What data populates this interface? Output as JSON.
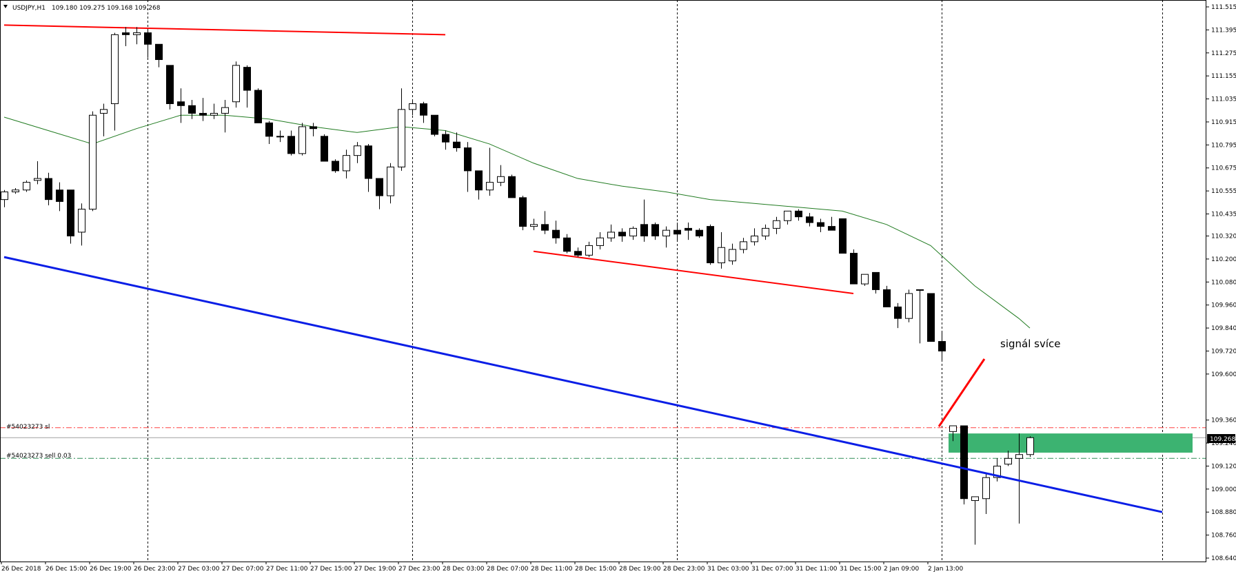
{
  "header": {
    "symbol_label": "USDJPY,H1",
    "ohlc_text": "109.180 109.275 109.168 109.268"
  },
  "orders": {
    "sl_label": "#54023273 sl",
    "sell_label": "#54023273 sell 0.03"
  },
  "annotation": {
    "text": "signál svíce"
  },
  "price_tag": {
    "text": "109.268"
  },
  "colors": {
    "bull_fill": "#ffffff",
    "bear_fill": "#000000",
    "ma": "#1f7a1f",
    "resistance": "#ff0000",
    "trendline": "#0a1ee6",
    "zone": "#3cb371",
    "order_line": "#2e8b57",
    "sl_line": "#ff4040"
  },
  "chart_data": {
    "type": "candlestick",
    "symbol": "USDJPY",
    "timeframe": "H1",
    "ylim": [
      108.64,
      111.515
    ],
    "y_ticks": [
      "111.515",
      "111.395",
      "111.275",
      "111.155",
      "111.035",
      "110.915",
      "110.795",
      "110.675",
      "110.555",
      "110.435",
      "110.320",
      "110.200",
      "110.080",
      "109.960",
      "109.840",
      "109.720",
      "109.600",
      "109.360",
      "109.240",
      "109.120",
      "109.000",
      "108.880",
      "108.760",
      "108.640"
    ],
    "x_ticks": [
      "26 Dec 2018",
      "26 Dec 15:00",
      "26 Dec 19:00",
      "26 Dec 23:00",
      "27 Dec 03:00",
      "27 Dec 07:00",
      "27 Dec 11:00",
      "27 Dec 15:00",
      "27 Dec 19:00",
      "27 Dec 23:00",
      "28 Dec 03:00",
      "28 Dec 07:00",
      "28 Dec 11:00",
      "28 Dec 15:00",
      "28 Dec 19:00",
      "28 Dec 23:00",
      "31 Dec 03:00",
      "31 Dec 07:00",
      "31 Dec 11:00",
      "31 Dec 15:00",
      "2 Jan 09:00",
      "2 Jan 13:00"
    ],
    "ohlc": [
      [
        110.51,
        110.56,
        110.47,
        110.55
      ],
      [
        110.55,
        110.57,
        110.54,
        110.56
      ],
      [
        110.56,
        110.61,
        110.55,
        110.6
      ],
      [
        110.61,
        110.71,
        110.59,
        110.62
      ],
      [
        110.62,
        110.65,
        110.48,
        110.51
      ],
      [
        110.56,
        110.6,
        110.45,
        110.5
      ],
      [
        110.56,
        110.56,
        110.28,
        110.32
      ],
      [
        110.34,
        110.49,
        110.27,
        110.46
      ],
      [
        110.46,
        110.97,
        110.45,
        110.95
      ],
      [
        110.96,
        111.01,
        110.84,
        110.98
      ],
      [
        111.01,
        111.38,
        110.87,
        111.37
      ],
      [
        111.38,
        111.41,
        111.31,
        111.37
      ],
      [
        111.37,
        111.41,
        111.32,
        111.38
      ],
      [
        111.38,
        111.39,
        111.25,
        111.32
      ],
      [
        111.32,
        111.32,
        111.2,
        111.24
      ],
      [
        111.21,
        111.21,
        110.98,
        111.01
      ],
      [
        111.02,
        111.09,
        110.91,
        111.0
      ],
      [
        111.0,
        111.03,
        110.93,
        110.96
      ],
      [
        110.96,
        111.04,
        110.92,
        110.95
      ],
      [
        110.95,
        111.01,
        110.93,
        110.96
      ],
      [
        110.96,
        111.03,
        110.86,
        110.99
      ],
      [
        111.02,
        111.23,
        110.99,
        111.21
      ],
      [
        111.2,
        111.21,
        110.99,
        111.08
      ],
      [
        111.08,
        111.09,
        110.92,
        110.91
      ],
      [
        110.91,
        110.92,
        110.8,
        110.84
      ],
      [
        110.84,
        110.87,
        110.81,
        110.84
      ],
      [
        110.84,
        110.87,
        110.74,
        110.75
      ],
      [
        110.75,
        110.91,
        110.74,
        110.89
      ],
      [
        110.89,
        110.91,
        110.84,
        110.88
      ],
      [
        110.84,
        110.85,
        110.71,
        110.71
      ],
      [
        110.71,
        110.72,
        110.65,
        110.66
      ],
      [
        110.66,
        110.77,
        110.62,
        110.74
      ],
      [
        110.74,
        110.81,
        110.7,
        110.79
      ],
      [
        110.79,
        110.8,
        110.55,
        110.62
      ],
      [
        110.62,
        110.62,
        110.46,
        110.53
      ],
      [
        110.53,
        110.7,
        110.49,
        110.68
      ],
      [
        110.68,
        111.09,
        110.66,
        110.98
      ],
      [
        110.98,
        111.03,
        110.95,
        111.01
      ],
      [
        111.01,
        111.02,
        110.91,
        110.95
      ],
      [
        110.95,
        110.95,
        110.84,
        110.85
      ],
      [
        110.85,
        110.87,
        110.77,
        110.81
      ],
      [
        110.81,
        110.86,
        110.76,
        110.78
      ],
      [
        110.78,
        110.81,
        110.55,
        110.66
      ],
      [
        110.66,
        110.66,
        110.51,
        110.56
      ],
      [
        110.56,
        110.78,
        110.53,
        110.6
      ],
      [
        110.6,
        110.69,
        110.58,
        110.63
      ],
      [
        110.63,
        110.64,
        110.52,
        110.52
      ],
      [
        110.52,
        110.53,
        110.35,
        110.37
      ],
      [
        110.37,
        110.41,
        110.35,
        110.38
      ],
      [
        110.38,
        110.45,
        110.33,
        110.35
      ],
      [
        110.35,
        110.4,
        110.28,
        110.31
      ],
      [
        110.31,
        110.33,
        110.23,
        110.24
      ],
      [
        110.24,
        110.26,
        110.21,
        110.22
      ],
      [
        110.22,
        110.29,
        110.21,
        110.27
      ],
      [
        110.27,
        110.34,
        110.25,
        110.31
      ],
      [
        110.31,
        110.38,
        110.29,
        110.34
      ],
      [
        110.34,
        110.36,
        110.29,
        110.32
      ],
      [
        110.32,
        110.37,
        110.3,
        110.36
      ],
      [
        110.38,
        110.51,
        110.29,
        110.32
      ],
      [
        110.38,
        110.39,
        110.3,
        110.32
      ],
      [
        110.32,
        110.37,
        110.26,
        110.35
      ],
      [
        110.35,
        110.39,
        110.29,
        110.33
      ],
      [
        110.36,
        110.39,
        110.3,
        110.35
      ],
      [
        110.35,
        110.36,
        110.31,
        110.32
      ],
      [
        110.37,
        110.38,
        110.17,
        110.18
      ],
      [
        110.18,
        110.34,
        110.15,
        110.26
      ],
      [
        110.19,
        110.28,
        110.17,
        110.25
      ],
      [
        110.25,
        110.31,
        110.23,
        110.29
      ],
      [
        110.29,
        110.36,
        110.27,
        110.32
      ],
      [
        110.32,
        110.38,
        110.3,
        110.36
      ],
      [
        110.36,
        110.42,
        110.33,
        110.4
      ],
      [
        110.4,
        110.45,
        110.38,
        110.45
      ],
      [
        110.45,
        110.46,
        110.4,
        110.42
      ],
      [
        110.42,
        110.44,
        110.37,
        110.39
      ],
      [
        110.39,
        110.41,
        110.34,
        110.37
      ],
      [
        110.37,
        110.42,
        110.35,
        110.35
      ],
      [
        110.41,
        110.41,
        110.23,
        110.23
      ],
      [
        110.23,
        110.25,
        110.07,
        110.07
      ],
      [
        110.07,
        110.12,
        110.06,
        110.12
      ],
      [
        110.13,
        110.13,
        110.02,
        110.04
      ],
      [
        110.04,
        110.06,
        109.95,
        109.95
      ],
      [
        109.95,
        109.97,
        109.84,
        109.89
      ],
      [
        109.89,
        110.04,
        109.87,
        110.02
      ],
      [
        110.04,
        110.04,
        109.76,
        110.04
      ],
      [
        110.02,
        110.02,
        109.77,
        109.77
      ],
      [
        109.77,
        109.82,
        109.67,
        109.72
      ],
      [
        109.3,
        109.32,
        109.25,
        109.33
      ],
      [
        109.33,
        109.33,
        108.92,
        108.95
      ],
      [
        108.94,
        108.95,
        108.71,
        108.96
      ],
      [
        108.95,
        109.08,
        108.87,
        109.06
      ],
      [
        109.06,
        109.16,
        109.04,
        109.12
      ],
      [
        109.13,
        109.2,
        109.12,
        109.16
      ],
      [
        109.16,
        109.29,
        108.82,
        109.18
      ],
      [
        109.18,
        109.275,
        109.168,
        109.268
      ]
    ],
    "moving_average": [
      [
        0,
        110.94
      ],
      [
        4,
        110.87
      ],
      [
        8,
        110.8
      ],
      [
        12,
        110.88
      ],
      [
        16,
        110.95
      ],
      [
        20,
        110.95
      ],
      [
        24,
        110.93
      ],
      [
        28,
        110.89
      ],
      [
        32,
        110.86
      ],
      [
        36,
        110.89
      ],
      [
        40,
        110.87
      ],
      [
        44,
        110.8
      ],
      [
        48,
        110.7
      ],
      [
        52,
        110.62
      ],
      [
        56,
        110.58
      ],
      [
        60,
        110.55
      ],
      [
        64,
        110.51
      ],
      [
        68,
        110.49
      ],
      [
        72,
        110.47
      ],
      [
        76,
        110.45
      ],
      [
        80,
        110.38
      ],
      [
        84,
        110.27
      ],
      [
        88,
        110.06
      ],
      [
        92,
        109.89
      ],
      [
        93,
        109.84
      ]
    ],
    "resistance_lines": [
      {
        "from": [
          0,
          111.42
        ],
        "to": [
          40,
          111.37
        ]
      },
      {
        "from": [
          48,
          110.24
        ],
        "to": [
          77,
          110.02
        ]
      }
    ],
    "trendline": {
      "from": [
        0,
        110.21
      ],
      "to": [
        105,
        108.88
      ]
    },
    "order_levels": {
      "sl": 109.32,
      "entry": 109.16,
      "current": 109.268
    },
    "zone": {
      "from_bar": 86,
      "low": 109.19,
      "high": 109.29
    }
  }
}
